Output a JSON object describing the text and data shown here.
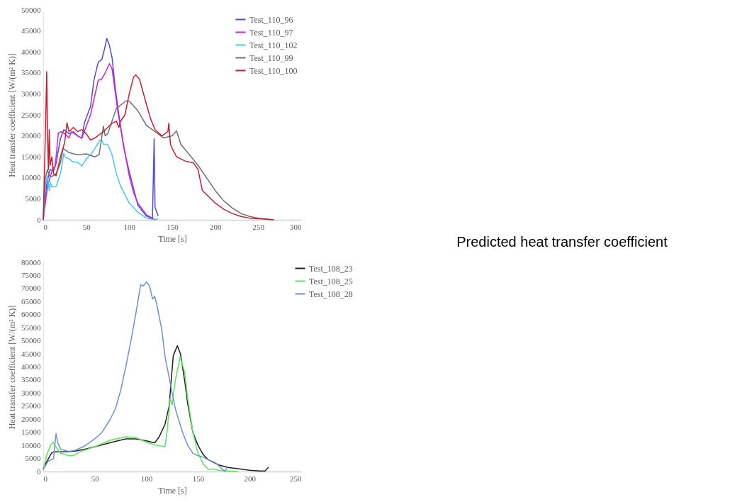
{
  "chart_data": [
    {
      "type": "line",
      "xlabel": "Time [s]",
      "ylabel": "Heat transfer coefficient [W/(m² K)]",
      "xlim": [
        0,
        300
      ],
      "ylim": [
        0,
        50000
      ],
      "xticks": [
        0,
        50,
        100,
        150,
        200,
        250,
        300
      ],
      "yticks": [
        0,
        5000,
        10000,
        15000,
        20000,
        25000,
        30000,
        35000,
        40000,
        45000,
        50000
      ],
      "legend": "top right",
      "series": [
        {
          "name": "Test_110_96",
          "color": "#4b4be0",
          "x": [
            0,
            4,
            8,
            12,
            15,
            20,
            24,
            30,
            35,
            40,
            45,
            48,
            55,
            59,
            64,
            68,
            71,
            74,
            77,
            80,
            84,
            88,
            93,
            97.5,
            103,
            110,
            120,
            127,
            129,
            130,
            133.5
          ],
          "values": [
            0,
            8600,
            12000,
            11600,
            13500,
            19300,
            21500,
            20500,
            21000,
            20000,
            19400,
            23200,
            27000,
            33300,
            37600,
            38100,
            40500,
            43200,
            41500,
            38700,
            31000,
            24900,
            18000,
            13600,
            9100,
            3500,
            900,
            200,
            19300,
            3000,
            1000
          ]
        },
        {
          "name": "Test_110_97",
          "color": "#d21fd2",
          "x": [
            0,
            5,
            10,
            14,
            17.6,
            21,
            25,
            30,
            33,
            40,
            45,
            50,
            55,
            64,
            68,
            72,
            77,
            80,
            86.6,
            90,
            95,
            100,
            105,
            110,
            120,
            130
          ],
          "values": [
            0,
            8000,
            11500,
            13000,
            20700,
            21000,
            20500,
            19500,
            21000,
            20000,
            19500,
            22300,
            25000,
            33300,
            33500,
            35000,
            37200,
            36000,
            26000,
            22000,
            16000,
            10500,
            6500,
            4000,
            1200,
            0
          ]
        },
        {
          "name": "Test_110_102",
          "color": "#45c8f0",
          "x": [
            0,
            3,
            5,
            7,
            8,
            10,
            15,
            20,
            24,
            25,
            30,
            35,
            40,
            45,
            50,
            55,
            60,
            66,
            68,
            70,
            75,
            80,
            85,
            90,
            100,
            110,
            120,
            130,
            133
          ],
          "values": [
            0,
            9000,
            10500,
            6900,
            9000,
            7800,
            8000,
            11000,
            15900,
            15000,
            14500,
            13800,
            13700,
            12800,
            14500,
            15500,
            17000,
            19000,
            19000,
            18000,
            18000,
            15500,
            11000,
            8000,
            4000,
            1800,
            400,
            0,
            200
          ]
        },
        {
          "name": "Test_110_99",
          "color": "#707070",
          "x": [
            0,
            2,
            5,
            7,
            10,
            15,
            20,
            23,
            30,
            40,
            50,
            60,
            65,
            70,
            72,
            75,
            80,
            85,
            96,
            100,
            110,
            120,
            130,
            140,
            150,
            155,
            160,
            170,
            180,
            190,
            200,
            210,
            220,
            230,
            240,
            250,
            265
          ],
          "values": [
            0,
            9500,
            12000,
            10500,
            10300,
            11000,
            13500,
            17000,
            16000,
            15500,
            15700,
            15000,
            15500,
            22300,
            20000,
            20500,
            23500,
            26500,
            28300,
            28300,
            26000,
            22500,
            21000,
            19500,
            20000,
            21200,
            18000,
            15500,
            13000,
            10000,
            7000,
            4500,
            2800,
            1500,
            800,
            400,
            100
          ]
        },
        {
          "name": "Test_110_100",
          "color": "#c81e2d",
          "x": [
            0,
            3,
            4,
            5,
            6,
            7,
            8,
            10,
            12,
            15,
            20,
            25,
            27.6,
            30,
            35,
            40,
            45,
            50,
            55,
            60,
            70,
            75,
            80,
            85,
            88,
            90,
            95,
            100,
            105,
            107.5,
            112,
            120,
            125,
            130,
            138,
            145,
            146,
            148,
            150,
            155,
            160,
            165,
            175,
            180,
            185,
            190,
            200,
            210,
            220,
            230,
            240,
            255,
            268
          ],
          "values": [
            0,
            25000,
            35300,
            20000,
            12000,
            21500,
            13000,
            15000,
            11000,
            10500,
            15000,
            18500,
            23100,
            21000,
            22000,
            21000,
            21500,
            20500,
            19000,
            19500,
            21000,
            22000,
            23000,
            23500,
            22000,
            23500,
            25000,
            30000,
            34000,
            34500,
            33500,
            27500,
            24000,
            21500,
            20000,
            21000,
            23000,
            18000,
            17000,
            15000,
            14500,
            14000,
            13500,
            12000,
            7000,
            6000,
            4000,
            2500,
            1500,
            800,
            400,
            200,
            0
          ]
        }
      ]
    },
    {
      "type": "line",
      "xlabel": "Time [s]",
      "ylabel": "Heat transfer coefficient [W/(m² K)]",
      "xlim": [
        0,
        250
      ],
      "ylim": [
        0,
        80000
      ],
      "xticks": [
        0,
        50,
        100,
        150,
        200,
        250
      ],
      "yticks": [
        0,
        5000,
        10000,
        15000,
        20000,
        25000,
        30000,
        35000,
        40000,
        45000,
        50000,
        55000,
        60000,
        65000,
        70000,
        75000,
        80000
      ],
      "legend": "right",
      "series": [
        {
          "name": "Test_108_23",
          "color": "#202020",
          "x": [
            0,
            3,
            8,
            10,
            20,
            30,
            40,
            50,
            60,
            70,
            80,
            90,
            100,
            108,
            112,
            118,
            122,
            126,
            130,
            133,
            137,
            140,
            145,
            150,
            155,
            160,
            170,
            180,
            190,
            200,
            210,
            215,
            218
          ],
          "values": [
            1000,
            3500,
            7000,
            7500,
            7500,
            7700,
            8500,
            9500,
            10500,
            11500,
            12500,
            12500,
            11700,
            11000,
            13000,
            18000,
            25000,
            44300,
            48100,
            45000,
            35000,
            26000,
            15000,
            10000,
            6500,
            4500,
            2500,
            1500,
            1000,
            500,
            200,
            200,
            1500
          ]
        },
        {
          "name": "Test_108_25",
          "color": "#5ae65a",
          "x": [
            0,
            3,
            7,
            9.5,
            13,
            17,
            25,
            30,
            35,
            50,
            65,
            80,
            90,
            100,
            110,
            118,
            120,
            123,
            125,
            128,
            132.7,
            137,
            140,
            145,
            150,
            155,
            160,
            165,
            170,
            180,
            188
          ],
          "values": [
            500,
            6000,
            10000,
            11300,
            9000,
            7000,
            6000,
            6200,
            7500,
            9500,
            12000,
            13300,
            13000,
            11200,
            10000,
            9500,
            15000,
            28000,
            25500,
            35000,
            43800,
            38000,
            28000,
            15000,
            7000,
            3000,
            800,
            1000,
            500,
            200,
            0
          ]
        },
        {
          "name": "Test_108_28",
          "color": "#6f8fd6",
          "x": [
            0,
            5,
            10,
            12.4,
            14,
            17,
            25,
            30,
            40,
            50,
            57,
            65,
            70,
            75,
            80,
            85,
            90,
            94.4,
            97,
            100,
            103,
            106,
            108,
            110,
            112,
            115,
            118,
            122,
            128,
            135,
            140,
            145,
            150,
            155,
            160,
            165,
            168,
            172,
            176,
            178
          ],
          "values": [
            1000,
            4000,
            5000,
            14500,
            11000,
            8500,
            7700,
            8000,
            9700,
            12500,
            15000,
            20000,
            24000,
            31000,
            40000,
            50000,
            61000,
            71400,
            71000,
            72500,
            71000,
            66000,
            67000,
            64000,
            60000,
            54000,
            44000,
            36000,
            24000,
            15000,
            10000,
            7000,
            6000,
            5500,
            4500,
            3700,
            3000,
            1500,
            0,
            1500
          ]
        }
      ]
    },
    {
      "type": "other",
      "annotations": [
        "Predicted heat transfer coefficient"
      ]
    }
  ]
}
